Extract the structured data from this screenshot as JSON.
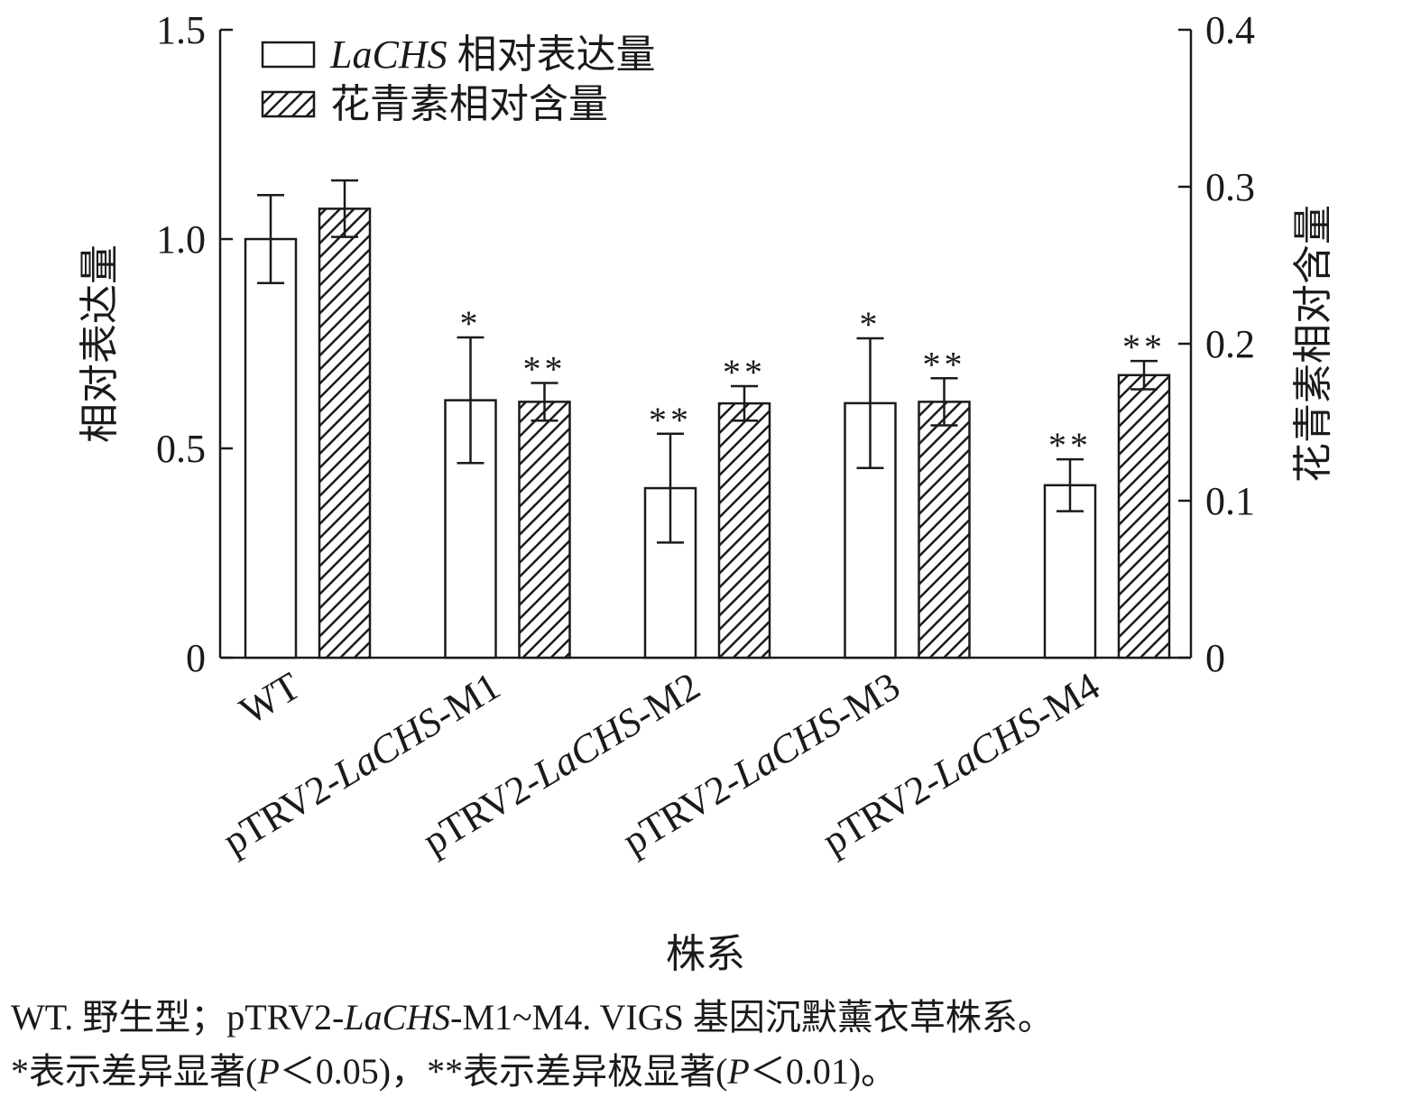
{
  "chart_data": {
    "type": "bar",
    "categories": [
      "WT",
      "pTRV2-LaCHS-M1",
      "pTRV2-LaCHS-M2",
      "pTRV2-LaCHS-M3",
      "pTRV2-LaCHS-M4"
    ],
    "category_labels": [
      [
        {
          "t": "WT",
          "i": false
        }
      ],
      [
        {
          "t": "pTRV2-",
          "i": false
        },
        {
          "t": "LaCHS",
          "i": true
        },
        {
          "t": "-M1",
          "i": false
        }
      ],
      [
        {
          "t": "pTRV2-",
          "i": false
        },
        {
          "t": "LaCHS",
          "i": true
        },
        {
          "t": "-M2",
          "i": false
        }
      ],
      [
        {
          "t": "pTRV2-",
          "i": false
        },
        {
          "t": "LaCHS",
          "i": true
        },
        {
          "t": "-M3",
          "i": false
        }
      ],
      [
        {
          "t": "pTRV2-",
          "i": false
        },
        {
          "t": "LaCHS",
          "i": true
        },
        {
          "t": "-M4",
          "i": false
        }
      ]
    ],
    "series": [
      {
        "name": "LaCHS 相对表达量",
        "legend": [
          {
            "t": "LaCHS",
            "i": true
          },
          {
            "t": " 相对表达量",
            "i": false
          }
        ],
        "axis": "left",
        "pattern": "open",
        "values": [
          1.0,
          0.615,
          0.405,
          0.608,
          0.412
        ],
        "errors": [
          0.105,
          0.15,
          0.13,
          0.155,
          0.062
        ],
        "significance": [
          "",
          "*",
          "**",
          "*",
          "**"
        ]
      },
      {
        "name": "花青素相对含量",
        "legend": [
          {
            "t": "花青素相对含量",
            "i": false
          }
        ],
        "axis": "right",
        "pattern": "hatched",
        "values": [
          0.286,
          0.163,
          0.162,
          0.163,
          0.18
        ],
        "errors": [
          0.018,
          0.012,
          0.011,
          0.015,
          0.009
        ],
        "significance": [
          "",
          "**",
          "**",
          "**",
          "**"
        ]
      }
    ],
    "xlabel": "株系",
    "ylabel": "相对表达量",
    "y2label": "花青素相对含量",
    "ylim": [
      0,
      1.5
    ],
    "y2lim": [
      0,
      0.4
    ],
    "yticks": [
      0,
      0.5,
      1.0,
      1.5
    ],
    "ytick_labels": [
      "0",
      "0.5",
      "1.0",
      "1.5"
    ],
    "y2ticks": [
      0,
      0.1,
      0.2,
      0.3,
      0.4
    ],
    "y2tick_labels": [
      "0",
      "0.1",
      "0.2",
      "0.3",
      "0.4"
    ],
    "legend_position": "top-left",
    "grid": false
  },
  "caption": {
    "line1": [
      {
        "t": "WT. 野生型；pTRV2-",
        "i": false
      },
      {
        "t": "LaCHS",
        "i": true
      },
      {
        "t": "-M1~M4. VIGS 基因沉默薰衣草株系。",
        "i": false
      }
    ],
    "line2": [
      {
        "t": "*表示差异显著(",
        "i": false
      },
      {
        "t": "P",
        "i": true
      },
      {
        "t": "＜0.05)，**表示差异极显著(",
        "i": false
      },
      {
        "t": "P",
        "i": true
      },
      {
        "t": "＜0.01)。",
        "i": false
      }
    ]
  },
  "colors": {
    "ink": "#1a1a1a",
    "bar_fill": "#ffffff"
  }
}
